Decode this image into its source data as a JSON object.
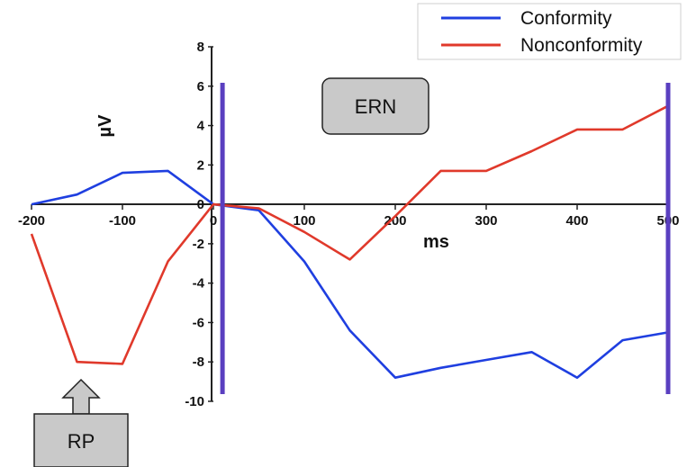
{
  "chart_data": {
    "type": "line",
    "title": "",
    "xlabel": "ms",
    "ylabel": "µV",
    "xlim": [
      -200,
      500
    ],
    "ylim": [
      -10,
      8
    ],
    "x_ticks": [
      -200,
      -100,
      0,
      100,
      200,
      300,
      400,
      500
    ],
    "x_tick_labels": [
      "-200",
      "-100",
      "0",
      "100",
      "200",
      "300",
      "400",
      "500"
    ],
    "y_ticks": [
      -10,
      -8,
      -6,
      -4,
      -2,
      0,
      2,
      4,
      6,
      8
    ],
    "y_tick_labels": [
      "-10",
      "-8",
      "-6",
      "-4",
      "-2",
      "0",
      "2",
      "4",
      "6",
      "8"
    ],
    "grid": false,
    "legend_position": "top-right",
    "series": [
      {
        "name": "Conformity",
        "color": "#1f3fe0",
        "x": [
          -200,
          -150,
          -100,
          -50,
          0,
          50,
          100,
          150,
          200,
          250,
          300,
          350,
          400,
          450,
          500
        ],
        "y": [
          0,
          0.5,
          1.6,
          1.7,
          0,
          -0.3,
          -2.9,
          -6.4,
          -8.8,
          -8.3,
          -7.9,
          -7.5,
          -8.8,
          -6.9,
          -6.5
        ]
      },
      {
        "name": "Nonconformity",
        "color": "#e0392b",
        "x": [
          -200,
          -150,
          -100,
          -50,
          0,
          50,
          100,
          150,
          200,
          250,
          300,
          350,
          400,
          450,
          500
        ],
        "y": [
          -1.5,
          -8.0,
          -8.1,
          -2.9,
          0,
          -0.2,
          -1.4,
          -2.8,
          -0.6,
          1.7,
          1.7,
          2.7,
          3.8,
          3.8,
          5.0
        ]
      }
    ],
    "vertical_markers": [
      {
        "x": 10,
        "color": "#5a3fc0"
      },
      {
        "x": 500,
        "color": "#5a3fc0"
      }
    ],
    "annotations": [
      {
        "label": "ERN",
        "shape": "rounded-box"
      },
      {
        "label": "RP",
        "shape": "up-arrow-box"
      }
    ]
  }
}
